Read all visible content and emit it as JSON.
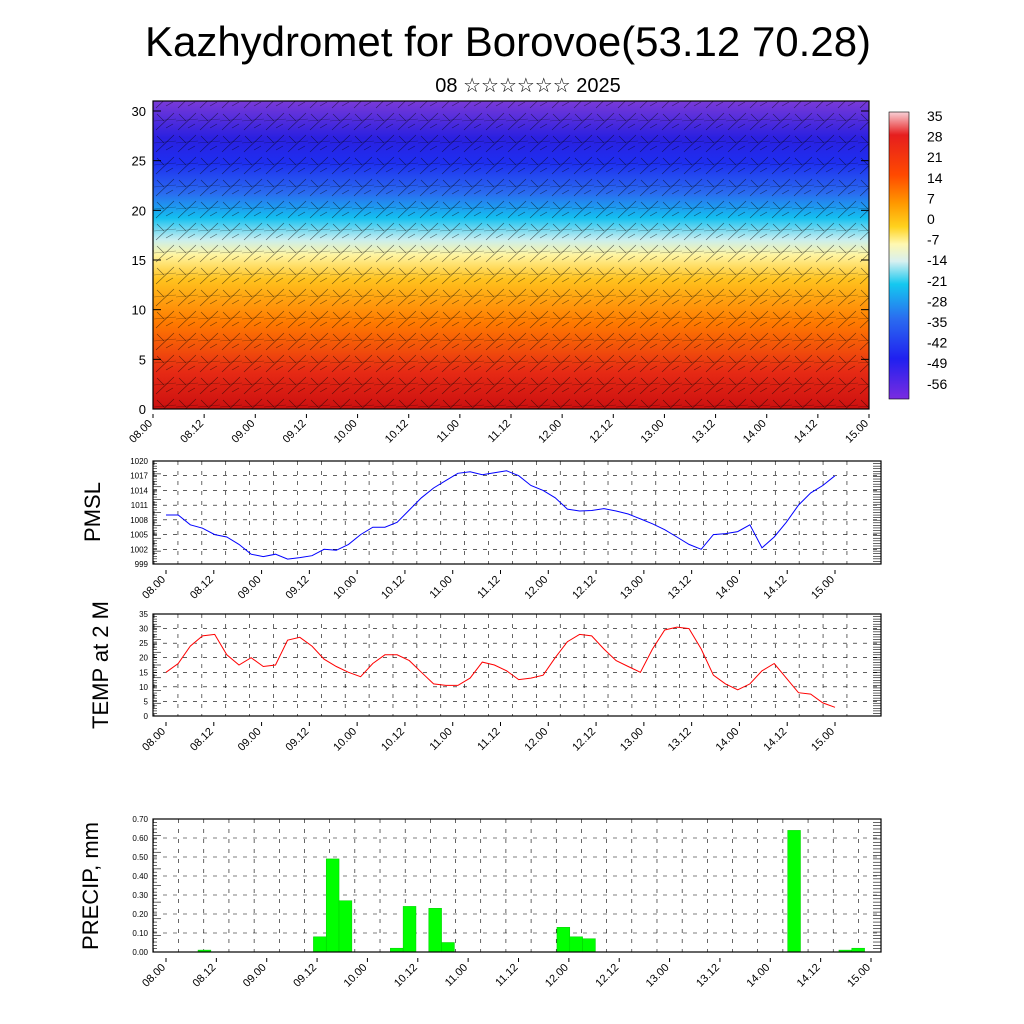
{
  "title": "Kazhydromet for Borovoe(53.12 70.28)",
  "subtitle": "08 ☆☆☆☆☆☆ 2025",
  "time_labels": [
    "08.00",
    "08.12",
    "09.00",
    "09.12",
    "10.00",
    "10.12",
    "11.00",
    "11.12",
    "12.00",
    "12.12",
    "13.00",
    "13.12",
    "14.00",
    "14.12",
    "15.00"
  ],
  "chart_data": [
    {
      "type": "heatmap",
      "ylim": [
        0,
        30
      ],
      "yticks": [
        0,
        5,
        10,
        15,
        20,
        25,
        30
      ],
      "colorbar_labels": [
        "35",
        "28",
        "21",
        "14",
        "7",
        "0",
        "-7",
        "-14",
        "-21",
        "-28",
        "-35",
        "-42",
        "-49",
        "-56"
      ],
      "colors": [
        "#f8d0d6",
        "#e61e1e",
        "#ff7a00",
        "#ffd21e",
        "#fff8b0",
        "#d8f0f0",
        "#14c8f0",
        "#2a6cf0",
        "#2020f0",
        "#7a2ce0"
      ],
      "overlay": "wind vectors"
    },
    {
      "type": "line",
      "ylabel": "PMSL",
      "ylim": [
        999,
        1020
      ],
      "yticks": [
        999,
        1002,
        1005,
        1008,
        1011,
        1014,
        1017,
        1020
      ],
      "color": "#0000ff",
      "values": [
        1009,
        1009,
        1007,
        1006.3,
        1005,
        1004.5,
        1003,
        1001,
        1000.5,
        1001,
        1000,
        1000.3,
        1000.7,
        1002,
        1001.8,
        1003,
        1005,
        1006.5,
        1006.5,
        1007.5,
        1010,
        1012.5,
        1014.5,
        1016,
        1017.5,
        1017.8,
        1017.2,
        1017.6,
        1018,
        1017,
        1015,
        1014,
        1012.5,
        1010.2,
        1009.8,
        1009.9,
        1010.3,
        1009.8,
        1009.2,
        1008.2,
        1007.2,
        1006,
        1004.5,
        1003,
        1002,
        1005,
        1005.2,
        1005.6,
        1007,
        1002.3,
        1004.5,
        1007.5,
        1011,
        1013.5,
        1015,
        1017
      ]
    },
    {
      "type": "line",
      "ylabel": "TEMP at 2 M",
      "ylim": [
        0,
        35
      ],
      "yticks": [
        0,
        5,
        10,
        15,
        20,
        25,
        30,
        35
      ],
      "color": "#ff0000",
      "values": [
        15,
        18,
        24,
        27.5,
        28,
        21,
        17.5,
        20,
        17,
        17.5,
        26,
        27,
        24,
        19.5,
        17,
        15,
        13.5,
        18,
        21,
        21,
        19,
        15,
        11,
        10.5,
        10.5,
        13,
        18.5,
        17.5,
        15.5,
        12.5,
        13,
        14,
        20,
        25.5,
        28,
        27.5,
        23,
        19,
        17,
        15,
        23,
        29.5,
        30.5,
        30,
        23,
        14,
        11,
        9,
        11,
        15.5,
        18,
        13,
        8,
        7.5,
        4.5,
        3
      ]
    },
    {
      "type": "bar",
      "ylabel": "PRECIP, mm",
      "ylim": [
        0,
        0.7
      ],
      "ytick_labels": [
        "0.00",
        "0.10",
        "0.20",
        "0.30",
        "0.40",
        "0.50",
        "0.60",
        "0.70"
      ],
      "color": "#00ff00",
      "values": [
        0,
        0,
        0,
        0.01,
        0,
        0,
        0,
        0,
        0,
        0,
        0,
        0,
        0.08,
        0.49,
        0.27,
        0,
        0,
        0,
        0.02,
        0.24,
        0,
        0.23,
        0.05,
        0,
        0,
        0,
        0,
        0,
        0,
        0,
        0,
        0.13,
        0.08,
        0.07,
        0,
        0,
        0,
        0,
        0,
        0,
        0,
        0,
        0,
        0,
        0,
        0,
        0,
        0,
        0,
        0.64,
        0,
        0,
        0,
        0.01,
        0.02,
        0
      ]
    }
  ]
}
